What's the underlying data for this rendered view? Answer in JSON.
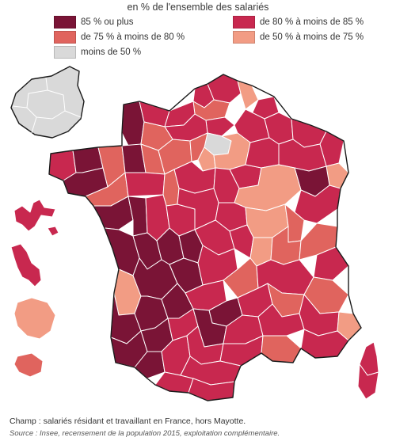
{
  "title": "en % de l'ensemble des salariés",
  "legend": [
    {
      "label": "85 % ou plus",
      "color": "#7a1436"
    },
    {
      "label": "de 80 % à moins de 85 %",
      "color": "#c8284f"
    },
    {
      "label": "de 75 % à moins de 80 %",
      "color": "#e0645e"
    },
    {
      "label": "de 50 % à moins de 75 %",
      "color": "#f29c84"
    },
    {
      "label": "moins de 50 %",
      "color": "#d9d9d9"
    }
  ],
  "footnote": "Champ : salariés résidant et travaillant en France, hors Mayotte.",
  "source": "Source : Insee, recensement de la population 2015, exploitation complémentaire.",
  "map": {
    "subject": "France départements choropleth",
    "insets": [
      "Petite couronne (Paris)",
      "Guadeloupe",
      "Martinique",
      "Guyane",
      "La Réunion",
      "Corse"
    ]
  }
}
